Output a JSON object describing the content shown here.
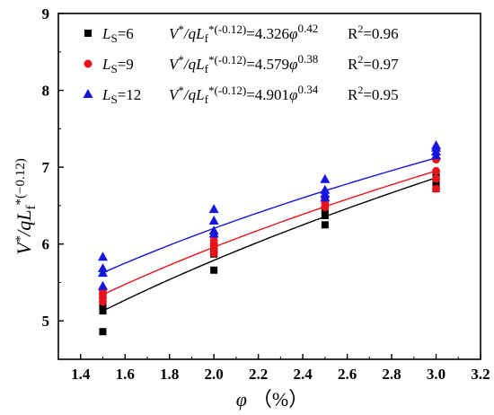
{
  "chart_data": {
    "type": "scatter",
    "xlabel": "φ（%）",
    "ylabel": "V*/qLf*(−0.12)",
    "xlim": [
      1.3,
      3.2
    ],
    "ylim": [
      4.5,
      9
    ],
    "xticks": [
      "1.4",
      "1.6",
      "1.8",
      "2.0",
      "2.2",
      "2.4",
      "2.6",
      "2.8",
      "3.0",
      "3.2"
    ],
    "yticks": [
      "5",
      "6",
      "7",
      "8",
      "9"
    ],
    "legend_position": "top-left",
    "series": [
      {
        "name": "Ls=6",
        "marker": "square",
        "color": "#000000",
        "equation": "V*/qLf*(-0.12)=4.326φ^0.42",
        "r2": "R2=0.96",
        "points": [
          [
            1.5,
            4.86
          ],
          [
            1.5,
            5.13
          ],
          [
            1.5,
            5.17
          ],
          [
            1.5,
            5.22
          ],
          [
            2.0,
            5.66
          ],
          [
            2.0,
            5.87
          ],
          [
            2.0,
            5.9
          ],
          [
            2.0,
            5.93
          ],
          [
            2.5,
            6.25
          ],
          [
            2.5,
            6.37
          ],
          [
            2.5,
            6.45
          ],
          [
            3.0,
            6.72
          ],
          [
            3.0,
            6.8
          ],
          [
            3.0,
            6.85
          ],
          [
            3.0,
            6.9
          ]
        ],
        "fit": {
          "a": 4.326,
          "b": 0.42
        }
      },
      {
        "name": "Ls=9",
        "marker": "circle",
        "color": "#e8141b",
        "equation": "V*/qLf*(-0.12)=4.579φ^0.38",
        "r2": "R2=0.97",
        "points": [
          [
            1.5,
            5.25
          ],
          [
            1.5,
            5.3
          ],
          [
            1.5,
            5.35
          ],
          [
            1.5,
            5.4
          ],
          [
            2.0,
            5.88
          ],
          [
            2.0,
            5.95
          ],
          [
            2.0,
            6.0
          ],
          [
            2.0,
            6.05
          ],
          [
            2.5,
            6.48
          ],
          [
            2.5,
            6.53
          ],
          [
            2.5,
            6.58
          ],
          [
            3.0,
            6.72
          ],
          [
            3.0,
            6.85
          ],
          [
            3.0,
            6.95
          ],
          [
            3.0,
            7.1
          ]
        ],
        "fit": {
          "a": 4.579,
          "b": 0.38
        }
      },
      {
        "name": "Ls=12",
        "marker": "triangle",
        "color": "#1515e0",
        "equation": "V*/qLf*(-0.12)=4.901φ^0.34",
        "r2": "R2=0.95",
        "points": [
          [
            1.5,
            5.45
          ],
          [
            1.5,
            5.62
          ],
          [
            1.5,
            5.68
          ],
          [
            1.5,
            5.83
          ],
          [
            2.0,
            6.13
          ],
          [
            2.0,
            6.17
          ],
          [
            2.0,
            6.3
          ],
          [
            2.0,
            6.45
          ],
          [
            2.5,
            6.6
          ],
          [
            2.5,
            6.65
          ],
          [
            2.5,
            6.7
          ],
          [
            2.5,
            6.84
          ],
          [
            3.0,
            7.15
          ],
          [
            3.0,
            7.2
          ],
          [
            3.0,
            7.25
          ],
          [
            3.0,
            7.28
          ]
        ],
        "fit": {
          "a": 4.901,
          "b": 0.34
        }
      }
    ]
  }
}
